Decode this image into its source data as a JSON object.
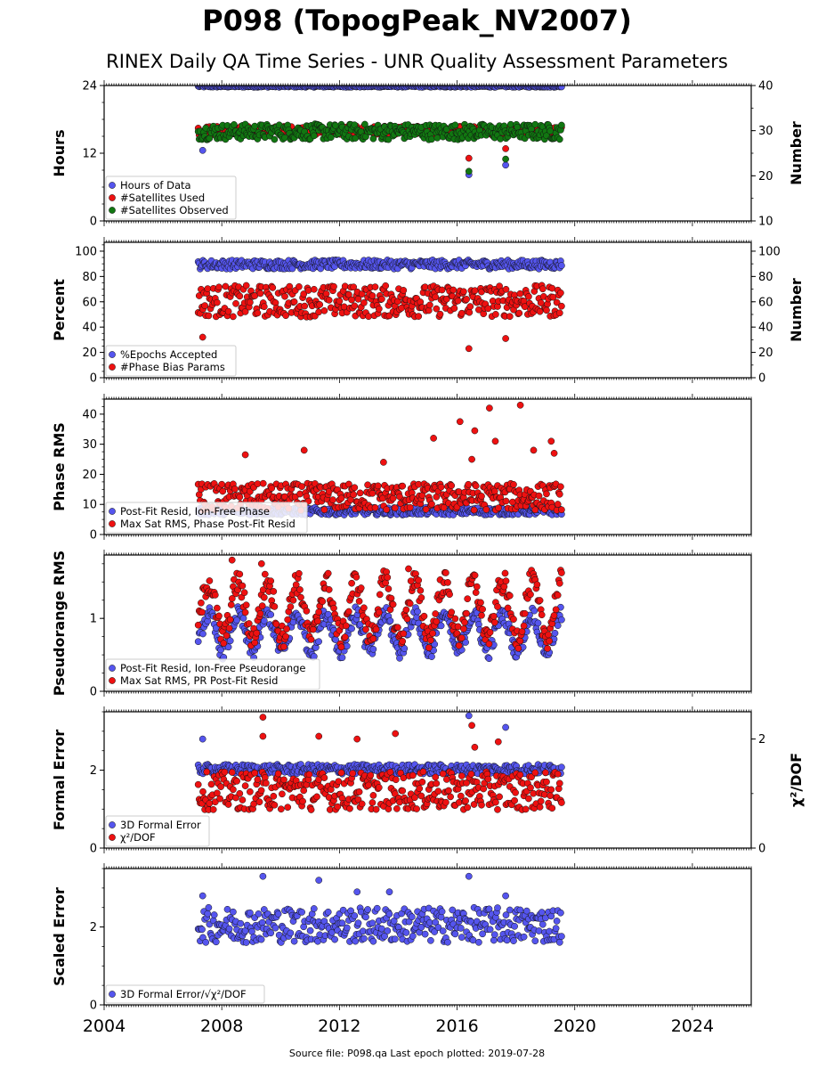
{
  "title": "P098 (TopogPeak_NV2007)",
  "subtitle": "RINEX Daily QA Time Series - UNR Quality Assessment Parameters",
  "footer": "Source file: P098.qa Last epoch plotted: 2019-07-28",
  "colors": {
    "blue": "#5555ee",
    "red": "#ee1111",
    "green": "#117711",
    "edge": "#111111"
  },
  "chart_data": [
    {
      "type": "scatter",
      "ylabel": "Hours",
      "ylabel_right": "Number",
      "xlim": [
        2004,
        2026
      ],
      "ylim": [
        0,
        24
      ],
      "ylim_right": [
        10,
        40
      ],
      "yticks": [
        0,
        12,
        24
      ],
      "yticks_right": [
        10,
        20,
        30,
        40
      ],
      "legend_position": "lower-left",
      "legend": [
        "Hours of Data",
        "#Satellites Used",
        "#Satellites Observed"
      ],
      "series": [
        {
          "name": "Hours of Data",
          "axis": "left",
          "color": "blue",
          "x_range": [
            2007.2,
            2019.57
          ],
          "base": 24,
          "band": [
            23.7,
            24
          ],
          "outliers": [
            [
              2007.35,
              12.5
            ],
            [
              2016.4,
              8.2
            ],
            [
              2017.65,
              9.9
            ]
          ]
        },
        {
          "name": "#Satellites Used",
          "axis": "right",
          "color": "red",
          "x_range": [
            2007.2,
            2019.57
          ],
          "base": 30,
          "band": [
            29,
            31
          ],
          "outliers": [
            [
              2009.6,
              30.1
            ],
            [
              2016.4,
              23.9
            ],
            [
              2017.65,
              26
            ]
          ]
        },
        {
          "name": "#Satellites Observed",
          "axis": "right",
          "color": "green",
          "x_range": [
            2007.2,
            2019.57
          ],
          "base": 30,
          "band": [
            28,
            31.5
          ],
          "outliers": [
            [
              2016.4,
              21
            ],
            [
              2017.65,
              23.7
            ]
          ]
        }
      ]
    },
    {
      "type": "scatter",
      "ylabel": "Percent",
      "ylabel_right": "Number",
      "xlim": [
        2004,
        2026
      ],
      "ylim": [
        0,
        107
      ],
      "ylim_right": [
        0,
        107
      ],
      "yticks": [
        0,
        20,
        40,
        60,
        80,
        100
      ],
      "yticks_right": [
        0,
        20,
        40,
        60,
        80,
        100
      ],
      "legend_position": "lower-left",
      "legend": [
        "%Epochs Accepted",
        "#Phase Bias Params"
      ],
      "series": [
        {
          "name": "%Epochs Accepted",
          "axis": "left",
          "color": "blue",
          "x_range": [
            2007.2,
            2019.57
          ],
          "base": 90,
          "band": [
            86,
            93
          ],
          "outliers": []
        },
        {
          "name": "#Phase Bias Params",
          "axis": "right",
          "color": "red",
          "x_range": [
            2007.2,
            2019.57
          ],
          "base": 60,
          "band": [
            48,
            73
          ],
          "outliers": [
            [
              2007.35,
              32
            ],
            [
              2016.4,
              23
            ],
            [
              2017.65,
              31
            ]
          ]
        }
      ]
    },
    {
      "type": "scatter",
      "ylabel": "Phase RMS",
      "xlim": [
        2004,
        2026
      ],
      "ylim": [
        0,
        45
      ],
      "yticks": [
        0,
        10,
        20,
        30,
        40
      ],
      "legend_position": "lower-left",
      "legend": [
        "Post-Fit Resid, Ion-Free Phase",
        "Max Sat RMS, Phase Post-Fit Resid"
      ],
      "series": [
        {
          "name": "Post-Fit Resid, Ion-Free Phase",
          "axis": "left",
          "color": "blue",
          "x_range": [
            2007.2,
            2019.57
          ],
          "base": 7.5,
          "band": [
            6.5,
            9
          ],
          "outliers": []
        },
        {
          "name": "Max Sat RMS, Phase Post-Fit Resid",
          "axis": "left",
          "color": "red",
          "x_range": [
            2007.2,
            2019.57
          ],
          "base": 12,
          "band": [
            8,
            17
          ],
          "outliers": [
            [
              2016.1,
              37.5
            ],
            [
              2016.6,
              34.5
            ],
            [
              2017.1,
              42
            ],
            [
              2018.15,
              43
            ],
            [
              2019.2,
              31
            ],
            [
              2015.2,
              32
            ],
            [
              2016.5,
              25
            ],
            [
              2017.3,
              31
            ],
            [
              2013.5,
              24
            ],
            [
              2010.8,
              28
            ],
            [
              2008.8,
              26.5
            ],
            [
              2018.6,
              28
            ],
            [
              2019.3,
              27
            ]
          ]
        }
      ]
    },
    {
      "type": "scatter",
      "ylabel": "Pseudorange RMS",
      "xlim": [
        2004,
        2026
      ],
      "ylim": [
        0,
        1.87
      ],
      "yticks": [
        0,
        1
      ],
      "legend_position": "lower-left",
      "legend": [
        "Post-Fit Resid, Ion-Free Pseudorange",
        "Max Sat RMS, PR Post-Fit Resid"
      ],
      "series": [
        {
          "name": "Post-Fit Resid, Ion-Free Pseudorange",
          "axis": "left",
          "color": "blue",
          "x_range": [
            2007.2,
            2019.57
          ],
          "seasonal": [
            0.55,
            1.05
          ],
          "outliers": []
        },
        {
          "name": "Max Sat RMS, PR Post-Fit Resid",
          "axis": "left",
          "color": "red",
          "x_range": [
            2007.2,
            2019.57
          ],
          "seasonal": [
            0.75,
            1.5
          ],
          "outliers": [
            [
              2008.35,
              1.8
            ],
            [
              2009.35,
              1.75
            ],
            [
              2014.35,
              1.68
            ]
          ]
        }
      ]
    },
    {
      "type": "scatter",
      "ylabel": "Formal Error",
      "ylabel_right": "χ²/DOF",
      "xlim": [
        2004,
        2026
      ],
      "ylim": [
        0,
        3.5
      ],
      "ylim_right": [
        0,
        2.5
      ],
      "yticks": [
        0,
        2
      ],
      "yticks_right": [
        0,
        2
      ],
      "legend_position": "lower-left",
      "legend": [
        "3D Formal Error",
        "χ²/DOF"
      ],
      "series": [
        {
          "name": "3D Formal Error",
          "axis": "left",
          "color": "blue",
          "x_range": [
            2007.2,
            2019.57
          ],
          "base": 2.0,
          "band": [
            1.9,
            2.15
          ],
          "outliers": [
            [
              2007.35,
              2.8
            ],
            [
              2016.4,
              3.4
            ],
            [
              2017.65,
              3.1
            ]
          ]
        },
        {
          "name": "χ²/DOF",
          "axis": "right",
          "color": "red",
          "x_range": [
            2007.2,
            2019.57
          ],
          "base": 1.0,
          "band": [
            0.7,
            1.4
          ],
          "outliers": [
            [
              2009.4,
              2.4
            ],
            [
              2009.4,
              2.05
            ],
            [
              2011.3,
              2.05
            ],
            [
              2012.6,
              2.0
            ],
            [
              2013.9,
              2.1
            ],
            [
              2016.5,
              2.25
            ],
            [
              2016.6,
              1.85
            ],
            [
              2017.4,
              1.95
            ]
          ]
        }
      ]
    },
    {
      "type": "scatter",
      "ylabel": "Scaled Error",
      "xlim": [
        2004,
        2026
      ],
      "ylim": [
        0,
        3.5
      ],
      "yticks": [
        0,
        2
      ],
      "legend_position": "lower-left",
      "legend": [
        "3D Formal Error/√χ²/DOF"
      ],
      "series": [
        {
          "name": "3D Formal Error/√χ²/DOF",
          "axis": "left",
          "color": "blue",
          "x_range": [
            2007.2,
            2019.57
          ],
          "base": 2.0,
          "band": [
            1.6,
            2.5
          ],
          "outliers": [
            [
              2009.4,
              3.3
            ],
            [
              2016.4,
              3.3
            ],
            [
              2011.3,
              3.2
            ],
            [
              2017.65,
              2.8
            ],
            [
              2007.35,
              2.8
            ],
            [
              2012.6,
              2.9
            ],
            [
              2013.7,
              2.9
            ]
          ]
        }
      ]
    }
  ],
  "xticks": [
    2004,
    2008,
    2012,
    2016,
    2020,
    2024
  ]
}
